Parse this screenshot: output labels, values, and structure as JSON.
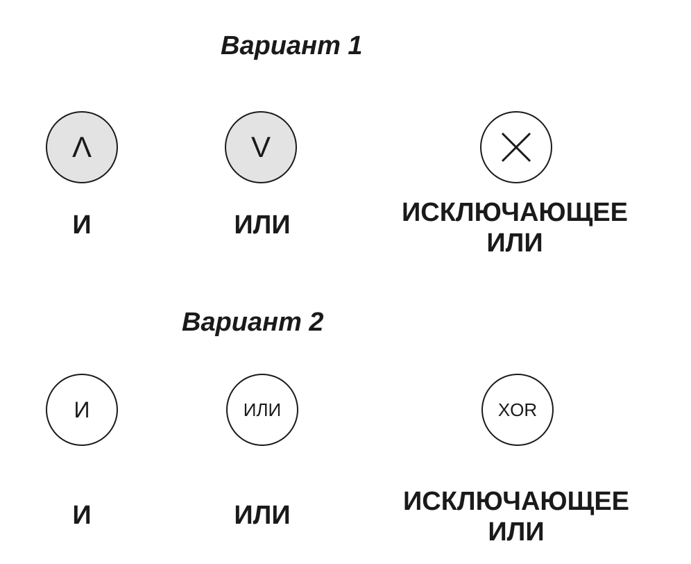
{
  "variant1": {
    "title": "Вариант 1",
    "gates": [
      {
        "symbol": "Λ",
        "label": "И"
      },
      {
        "symbol": "V",
        "label": "ИЛИ"
      },
      {
        "symbol_icon": "cross-icon",
        "label_line1": "ИСКЛЮЧАЮЩЕЕ",
        "label_line2": "ИЛИ"
      }
    ]
  },
  "variant2": {
    "title": "Вариант 2",
    "gates": [
      {
        "symbol": "И",
        "label": "И"
      },
      {
        "symbol": "ИЛИ",
        "label": "ИЛИ"
      },
      {
        "symbol": "XOR",
        "label_line1": "ИСКЛЮЧАЮЩЕЕ",
        "label_line2": "ИЛИ"
      }
    ]
  },
  "colors": {
    "stroke": "#1a1a1a",
    "shaded_fill": "#e3e3e3"
  }
}
